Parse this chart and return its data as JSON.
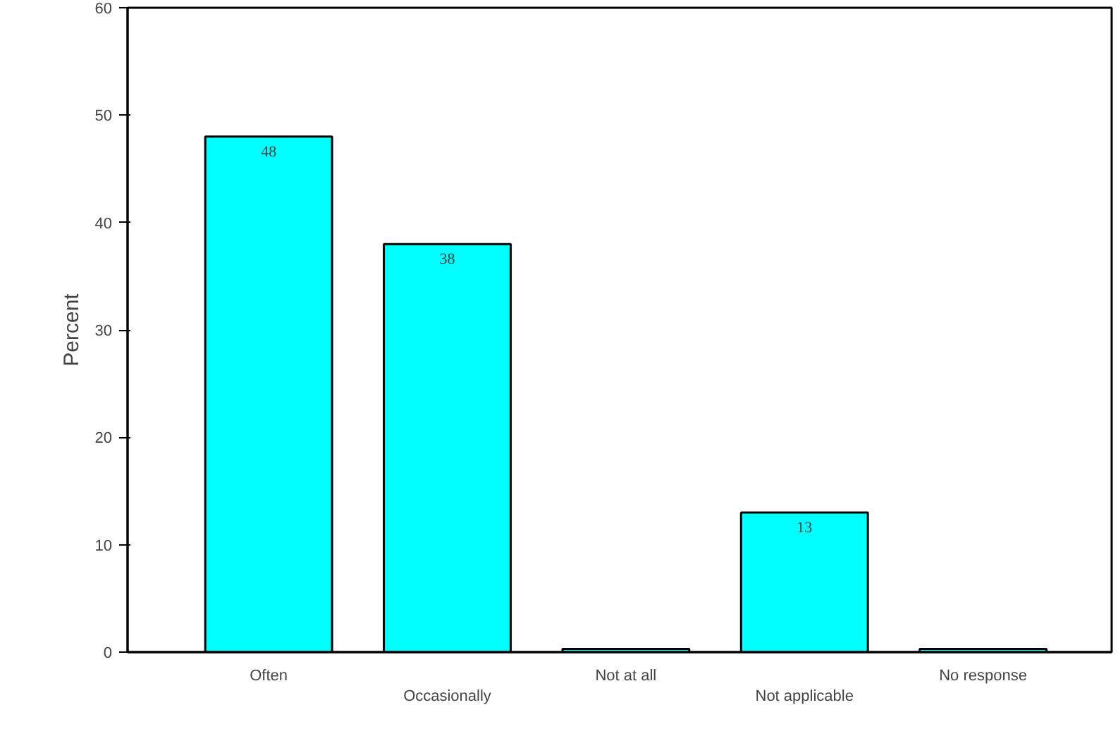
{
  "chart_data": {
    "type": "bar",
    "ylabel": "Percent",
    "categories": [
      "Often",
      "Occasionally",
      "Not at all",
      "Not applicable",
      "No response"
    ],
    "values": [
      48,
      38,
      0.3,
      13,
      0.3
    ],
    "value_labels": [
      "48",
      "38",
      null,
      "13",
      null
    ],
    "color": "#00ffff",
    "ylim": [
      0,
      60
    ],
    "yticks": [
      0,
      10,
      20,
      30,
      40,
      50,
      60
    ],
    "grid": false
  }
}
